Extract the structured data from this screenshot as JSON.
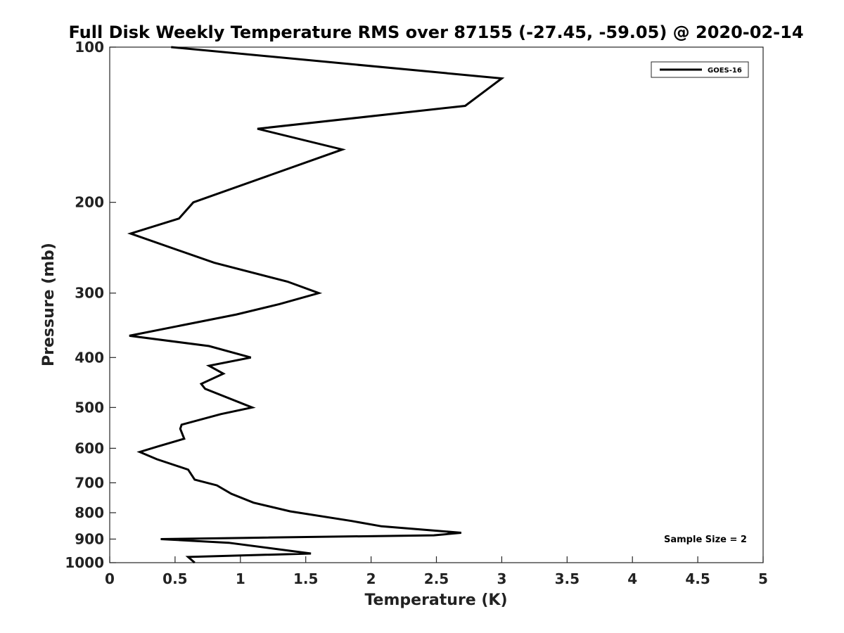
{
  "chart_data": {
    "type": "line",
    "title": "Full Disk Weekly Temperature RMS over 87155 (-27.45, -59.05) @ 2020-02-14",
    "xlabel": "Temperature (K)",
    "ylabel": "Pressure (mb)",
    "xlim": [
      0,
      5
    ],
    "ylim": [
      100,
      1000
    ],
    "y_scale": "log",
    "y_reversed": true,
    "x_ticks": [
      "0",
      "0.5",
      "1",
      "1.5",
      "2",
      "2.5",
      "3",
      "3.5",
      "4",
      "4.5",
      "5"
    ],
    "y_ticks": [
      "100",
      "200",
      "300",
      "400",
      "500",
      "600",
      "700",
      "800",
      "900",
      "1000"
    ],
    "grid": false,
    "legend": {
      "position": "top-right",
      "entries": [
        "GOES-16"
      ]
    },
    "annotation": "Sample Size = 2",
    "series": [
      {
        "name": "GOES-16",
        "color": "#000000",
        "x": [
          0.47,
          3.0,
          2.72,
          1.13,
          1.78,
          0.64,
          0.53,
          0.16,
          0.8,
          1.36,
          1.6,
          1.3,
          0.97,
          0.15,
          0.76,
          1.08,
          0.76,
          0.87,
          0.7,
          0.73,
          1.09,
          0.85,
          0.55,
          0.54,
          0.57,
          0.37,
          0.23,
          0.36,
          0.6,
          0.65,
          0.82,
          0.93,
          1.1,
          1.38,
          1.85,
          2.08,
          2.69,
          2.48,
          1.05,
          0.39,
          0.91,
          1.54,
          0.6,
          0.65
        ],
        "y": [
          100,
          115,
          130,
          144,
          158,
          200,
          215,
          230,
          262,
          285,
          300,
          315,
          330,
          363,
          380,
          400,
          415,
          430,
          450,
          460,
          500,
          515,
          540,
          550,
          575,
          595,
          610,
          630,
          660,
          690,
          708,
          735,
          765,
          795,
          830,
          850,
          875,
          885,
          895,
          900,
          915,
          960,
          975,
          1000
        ]
      }
    ]
  }
}
